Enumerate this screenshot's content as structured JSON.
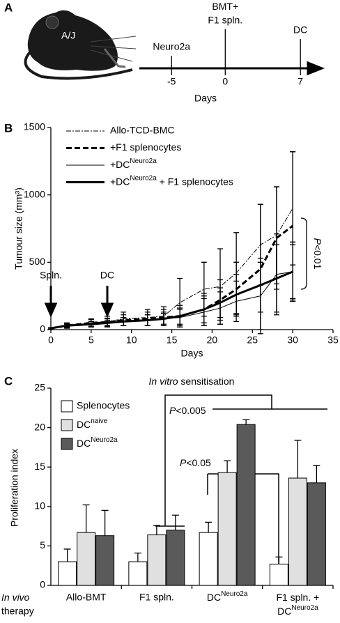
{
  "chart_data": [
    {
      "type": "timeline",
      "panel": "A",
      "subject": "A/J",
      "events": [
        {
          "x": -5,
          "label": "Neuro2a"
        },
        {
          "x": 0,
          "label": {
            "text": "BMT+",
            "line2": "F1 spln."
          }
        },
        {
          "x": 7,
          "label": "DC"
        }
      ],
      "xlim": [
        -8,
        9
      ],
      "xticks": [
        -5,
        0,
        7
      ],
      "xlabel": "Days"
    },
    {
      "type": "line",
      "panel": "B",
      "x": [
        0,
        2,
        5,
        7,
        9,
        12,
        14,
        16,
        19,
        21,
        23,
        26,
        28,
        30
      ],
      "xlim": [
        0,
        35
      ],
      "xticks": [
        0,
        5,
        10,
        15,
        20,
        25,
        30,
        35
      ],
      "ylim": [
        0,
        1500
      ],
      "yticks": [
        0,
        500,
        1000,
        1500
      ],
      "xlabel": "Days",
      "ylabel": "Tumour size (mm³)",
      "series": [
        {
          "name": "Allo-TCD-BMC",
          "color": "#000000",
          "line_style": "dashdot",
          "line_width": 1,
          "values": [
            10,
            30,
            50,
            60,
            80,
            90,
            100,
            200,
            300,
            320,
            420,
            630,
            700,
            900
          ],
          "errors": [
            5,
            20,
            30,
            40,
            50,
            60,
            70,
            180,
            200,
            280,
            300,
            300,
            360,
            420
          ]
        },
        {
          "name": "+F1 splenocytes",
          "color": "#000000",
          "line_style": "dashed",
          "line_width": 3,
          "values": [
            10,
            30,
            50,
            55,
            70,
            80,
            90,
            100,
            150,
            220,
            300,
            450,
            680,
            770
          ],
          "errors": [
            5,
            15,
            25,
            30,
            40,
            50,
            60,
            80,
            120,
            150,
            200,
            480,
            380,
            550
          ]
        },
        {
          "name": {
            "text": "+DC",
            "sup": "Neuro2a"
          },
          "color": "#000000",
          "line_style": "solid",
          "line_width": 1,
          "values": [
            10,
            30,
            40,
            50,
            60,
            70,
            80,
            90,
            130,
            160,
            210,
            250,
            410,
            430
          ],
          "errors": [
            5,
            10,
            20,
            30,
            30,
            40,
            50,
            60,
            100,
            120,
            150,
            250,
            300,
            220
          ]
        },
        {
          "name": {
            "text": "+DC",
            "sup": "Neuro2a",
            "tail": " + F1 splenocytes"
          },
          "color": "#000000",
          "line_style": "solid",
          "line_width": 3,
          "values": [
            10,
            30,
            40,
            50,
            60,
            70,
            80,
            100,
            150,
            200,
            260,
            330,
            380,
            430
          ],
          "errors": [
            5,
            10,
            20,
            20,
            30,
            40,
            40,
            60,
            100,
            110,
            150,
            200,
            250,
            200
          ]
        }
      ],
      "markers": [
        {
          "x": 0,
          "label": "Spln."
        },
        {
          "x": 7,
          "label": "DC"
        }
      ],
      "significance": {
        "italic": "P",
        "text": "<0.01"
      }
    },
    {
      "type": "bar",
      "panel": "C",
      "title": {
        "italic": "In vitro",
        "text": " sensitisation"
      },
      "row_label": {
        "italic": "In vivo",
        "line2": "therapy"
      },
      "categories": [
        "Allo-BMT",
        "F1 spln.",
        {
          "text": "DC",
          "sup": "Neuro2a"
        },
        {
          "text": "F1 spln. +",
          "line2": {
            "text": "DC",
            "sup": "Neuro2a"
          }
        }
      ],
      "ylim": [
        0,
        25
      ],
      "yticks": [
        0,
        5,
        10,
        15,
        20,
        25
      ],
      "ylabel": "Proliferation index",
      "series": [
        {
          "name": "Splenocytes",
          "color": "#ffffff",
          "values": [
            3.0,
            3.0,
            6.7,
            2.7
          ],
          "errors": [
            1.6,
            1.1,
            1.3,
            0.9
          ]
        },
        {
          "name": {
            "text": "DC",
            "sup": "naive"
          },
          "color": "#e0e0e0",
          "values": [
            6.7,
            6.4,
            14.3,
            13.6
          ],
          "errors": [
            3.5,
            1.2,
            1.5,
            4.8
          ]
        },
        {
          "name": {
            "text": "DC",
            "sup": "Neuro2a"
          },
          "color": "#5a5a5a",
          "values": [
            6.3,
            7.0,
            20.4,
            13.0
          ],
          "errors": [
            3.2,
            1.9,
            0.6,
            2.2
          ]
        }
      ],
      "significance": [
        {
          "italic": "P",
          "text": "<0.005"
        },
        {
          "italic": "P",
          "text": "<0.05"
        }
      ]
    }
  ]
}
